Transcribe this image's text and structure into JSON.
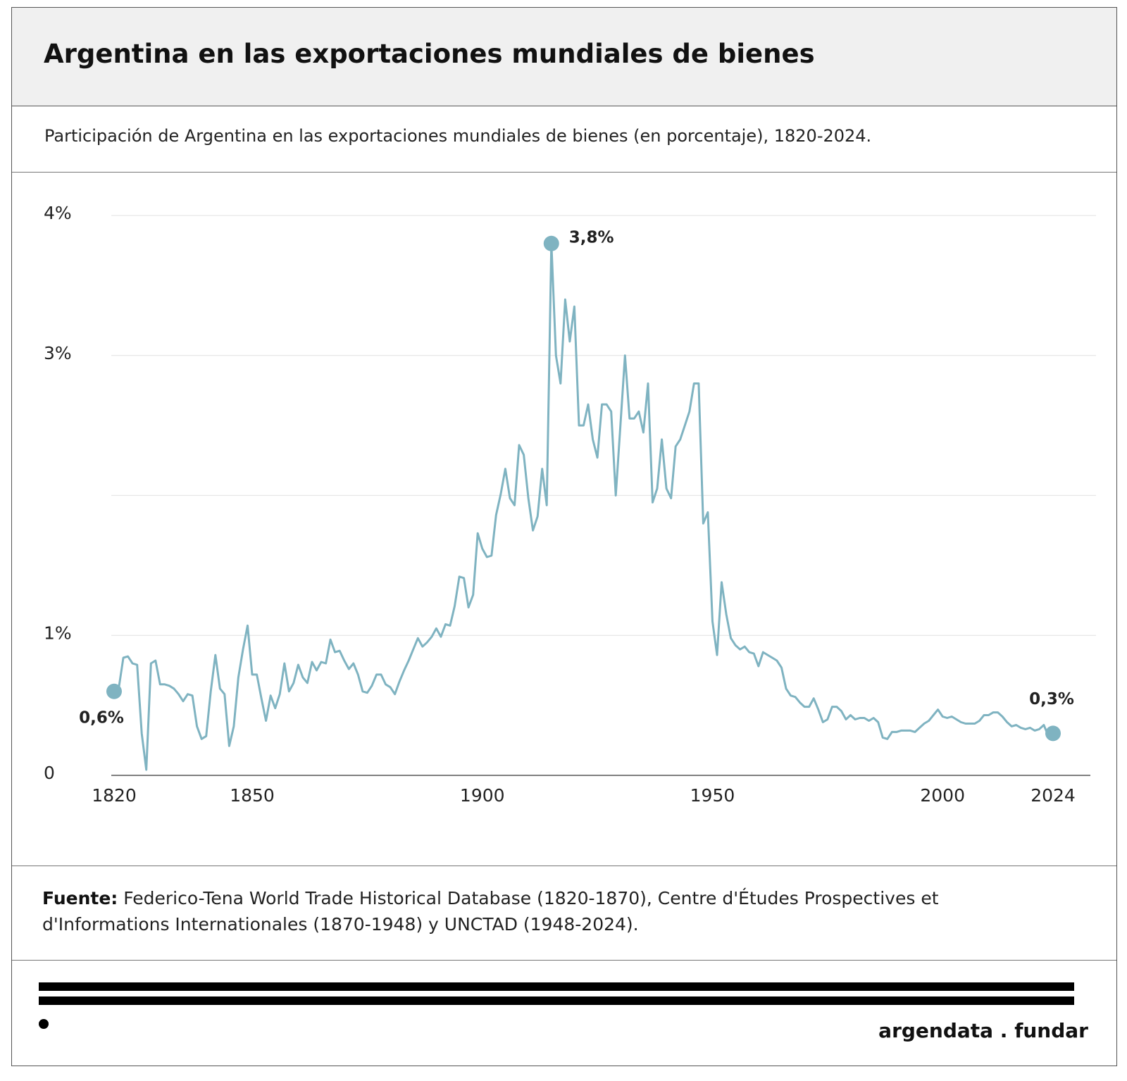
{
  "chart_data": {
    "type": "line",
    "title": "Argentina en las exportaciones mundiales de bienes",
    "subtitle": "Participación de Argentina en las exportaciones mundiales de bienes (en porcentaje), 1820-2024.",
    "color": "#7fb3c1",
    "x": [
      1820,
      1821,
      1822,
      1823,
      1824,
      1825,
      1826,
      1827,
      1828,
      1829,
      1830,
      1831,
      1832,
      1833,
      1834,
      1835,
      1836,
      1837,
      1838,
      1839,
      1840,
      1841,
      1842,
      1843,
      1844,
      1845,
      1846,
      1847,
      1848,
      1849,
      1850,
      1851,
      1852,
      1853,
      1854,
      1855,
      1856,
      1857,
      1858,
      1859,
      1860,
      1861,
      1862,
      1863,
      1864,
      1865,
      1866,
      1867,
      1868,
      1869,
      1870,
      1871,
      1872,
      1873,
      1874,
      1875,
      1876,
      1877,
      1878,
      1879,
      1880,
      1881,
      1882,
      1883,
      1884,
      1885,
      1886,
      1887,
      1888,
      1889,
      1890,
      1891,
      1892,
      1893,
      1894,
      1895,
      1896,
      1897,
      1898,
      1899,
      1900,
      1901,
      1902,
      1903,
      1904,
      1905,
      1906,
      1907,
      1908,
      1909,
      1910,
      1911,
      1912,
      1913,
      1914,
      1915,
      1916,
      1917,
      1918,
      1919,
      1920,
      1921,
      1922,
      1923,
      1924,
      1925,
      1926,
      1927,
      1928,
      1929,
      1930,
      1931,
      1932,
      1933,
      1934,
      1935,
      1936,
      1937,
      1938,
      1939,
      1940,
      1941,
      1942,
      1943,
      1944,
      1945,
      1946,
      1947,
      1948,
      1949,
      1950,
      1951,
      1952,
      1953,
      1954,
      1955,
      1956,
      1957,
      1958,
      1959,
      1960,
      1961,
      1962,
      1963,
      1964,
      1965,
      1966,
      1967,
      1968,
      1969,
      1970,
      1971,
      1972,
      1973,
      1974,
      1975,
      1976,
      1977,
      1978,
      1979,
      1980,
      1981,
      1982,
      1983,
      1984,
      1985,
      1986,
      1987,
      1988,
      1989,
      1990,
      1991,
      1992,
      1993,
      1994,
      1995,
      1996,
      1997,
      1998,
      1999,
      2000,
      2001,
      2002,
      2003,
      2004,
      2005,
      2006,
      2007,
      2008,
      2009,
      2010,
      2011,
      2012,
      2013,
      2014,
      2015,
      2016,
      2017,
      2018,
      2019,
      2020,
      2021,
      2022,
      2023,
      2024
    ],
    "values": [
      0.6,
      0.62,
      0.84,
      0.85,
      0.8,
      0.79,
      0.3,
      0.04,
      0.8,
      0.82,
      0.65,
      0.65,
      0.64,
      0.62,
      0.58,
      0.53,
      0.58,
      0.57,
      0.35,
      0.26,
      0.28,
      0.6,
      0.86,
      0.62,
      0.58,
      0.21,
      0.35,
      0.7,
      0.9,
      1.07,
      0.72,
      0.72,
      0.55,
      0.39,
      0.57,
      0.48,
      0.58,
      0.8,
      0.6,
      0.66,
      0.79,
      0.7,
      0.66,
      0.81,
      0.75,
      0.81,
      0.8,
      0.97,
      0.88,
      0.89,
      0.82,
      0.76,
      0.8,
      0.72,
      0.6,
      0.59,
      0.64,
      0.72,
      0.72,
      0.65,
      0.63,
      0.58,
      0.67,
      0.75,
      0.82,
      0.9,
      0.98,
      0.92,
      0.95,
      0.99,
      1.05,
      0.99,
      1.08,
      1.07,
      1.21,
      1.42,
      1.41,
      1.2,
      1.29,
      1.73,
      1.62,
      1.56,
      1.57,
      1.86,
      2.01,
      2.19,
      1.98,
      1.93,
      2.36,
      2.29,
      1.98,
      1.75,
      1.85,
      2.19,
      1.93,
      3.8,
      3.0,
      2.8,
      3.4,
      3.1,
      3.35,
      2.5,
      2.5,
      2.65,
      2.4,
      2.27,
      2.65,
      2.65,
      2.6,
      2.0,
      2.5,
      3.0,
      2.55,
      2.55,
      2.6,
      2.45,
      2.8,
      1.95,
      2.05,
      2.4,
      2.05,
      1.98,
      2.35,
      2.4,
      2.5,
      2.6,
      2.8,
      2.8,
      1.8,
      1.88,
      1.1,
      0.86,
      1.38,
      1.15,
      0.98,
      0.93,
      0.9,
      0.92,
      0.88,
      0.87,
      0.78,
      0.88,
      0.86,
      0.84,
      0.82,
      0.77,
      0.62,
      0.57,
      0.56,
      0.52,
      0.49,
      0.49,
      0.55,
      0.47,
      0.38,
      0.4,
      0.49,
      0.49,
      0.46,
      0.4,
      0.43,
      0.4,
      0.41,
      0.41,
      0.39,
      0.41,
      0.38,
      0.27,
      0.26,
      0.31,
      0.31,
      0.32,
      0.32,
      0.32,
      0.31,
      0.34,
      0.37,
      0.39,
      0.43,
      0.47,
      0.42,
      0.41,
      0.42,
      0.4,
      0.38,
      0.37,
      0.37,
      0.37,
      0.39,
      0.43,
      0.43,
      0.45,
      0.45,
      0.42,
      0.38,
      0.35,
      0.36,
      0.34,
      0.33,
      0.34,
      0.32,
      0.33,
      0.36,
      0.28,
      0.3
    ],
    "xlim": [
      1820,
      2024
    ],
    "xticks": [
      1820,
      1850,
      1900,
      1950,
      2000,
      2024
    ],
    "ylim": [
      0,
      4
    ],
    "yticks": [
      0,
      {
        "value": 1,
        "label": "1%"
      },
      {
        "value": 3,
        "label": "3%"
      },
      {
        "value": 4,
        "label": "4%"
      }
    ],
    "ygrid": [
      1,
      2,
      3,
      4
    ],
    "annotations": [
      {
        "x": 1820,
        "y": 0.6,
        "label": "0,6%"
      },
      {
        "x": 1915,
        "y": 3.8,
        "label": "3,8%"
      },
      {
        "x": 2024,
        "y": 0.3,
        "label": "0,3%"
      }
    ]
  },
  "source": {
    "label": "Fuente:",
    "text": "Federico-Tena World Trade Historical Database (1820-1870), Centre d'Études Prospectives et d'Informations Internationales (1870-1948) y UNCTAD (1948-2024)."
  },
  "brand": "argendata . fundar"
}
